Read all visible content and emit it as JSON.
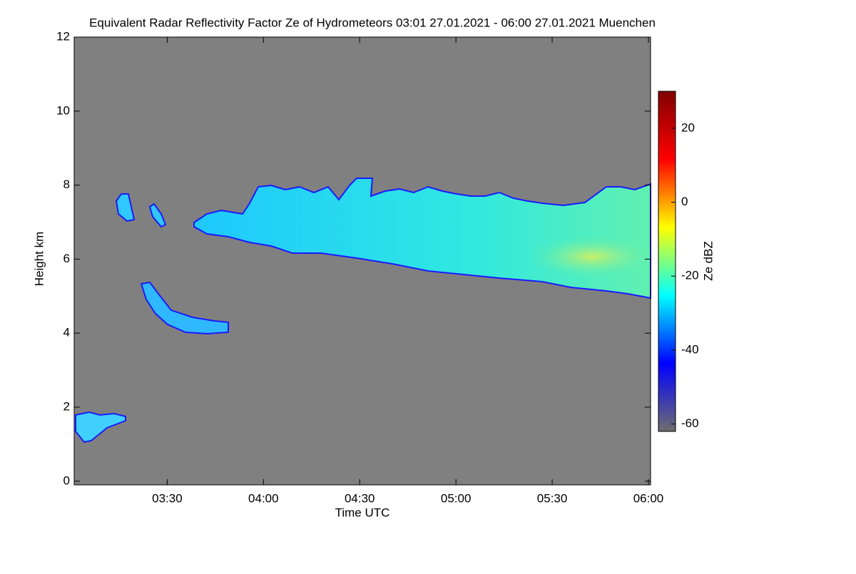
{
  "chart_data": {
    "type": "heatmap",
    "title": "Equivalent Radar Reflectivity Factor Ze of Hydrometeors   03:01 27.01.2021 - 06:00 27.01.2021 Muenchen",
    "x_label": "Time UTC",
    "y_label": "Height km",
    "colorbar_label": "Ze dBZ",
    "xlim": [
      "2021-01-27T03:01",
      "2021-01-27T06:00"
    ],
    "xticks": [
      {
        "value": "2021-01-27T03:30",
        "label": "03:30"
      },
      {
        "value": "2021-01-27T04:00",
        "label": "04:00"
      },
      {
        "value": "2021-01-27T04:30",
        "label": "04:30"
      },
      {
        "value": "2021-01-27T05:00",
        "label": "05:00"
      },
      {
        "value": "2021-01-27T05:30",
        "label": "05:30"
      },
      {
        "value": "2021-01-27T06:00",
        "label": "06:00"
      }
    ],
    "ylim": [
      -0.1,
      12
    ],
    "yticks": [
      0,
      2,
      4,
      6,
      8,
      10,
      12
    ],
    "clim": [
      -62,
      30
    ],
    "cticks": [
      -60,
      -40,
      -20,
      0,
      20
    ],
    "colormap": [
      "#6e6e6e",
      "#0000ff",
      "#00ffff",
      "#ffff00",
      "#ff0000",
      "#800000"
    ],
    "background": "#808080"
  }
}
